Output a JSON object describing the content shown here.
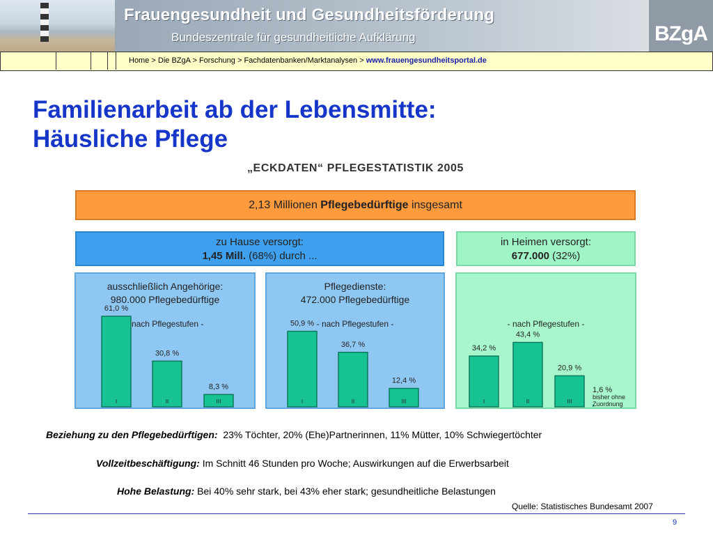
{
  "header": {
    "title": "Frauengesundheit und Gesundheitsförderung",
    "subtitle": "Bundeszentrale für gesundheitliche Aufklärung",
    "logo": "BZgA"
  },
  "breadcrumb": {
    "items": [
      "Home",
      "Die BZgA",
      "Forschung",
      "Fachdatenbanken/Marktanalysen"
    ],
    "separator": ">",
    "url": "www.frauengesundheitsportal.de"
  },
  "slide": {
    "title_line1": "Familienarbeit ab der Lebensmitte:",
    "title_line2": "Häusliche Pflege"
  },
  "chart_data": {
    "type": "bar",
    "title": "„ECKDATEN“ PFLEGESTATISTIK 2005",
    "total": {
      "prefix": "2,13 Millionen ",
      "bold": "Pflegebedürftige",
      "suffix": " insgesamt"
    },
    "home": {
      "line1": "zu Hause versorgt:",
      "line2_bold": "1,45 Mill.",
      "line2_rest": " (68%) durch ..."
    },
    "institution": {
      "line1": "in Heimen versorgt:",
      "line2_bold": "677.000",
      "line2_rest": " (32%)"
    },
    "subtitle": "- nach Pflegestufen -",
    "categories": [
      "I",
      "II",
      "III"
    ],
    "ylim": [
      0,
      100
    ],
    "panels": [
      {
        "name": "ausschließlich Angehörige",
        "heading1": "ausschließlich Angehörige:",
        "heading2": "980.000 Pflegebedürftige",
        "values": [
          61.0,
          30.8,
          8.3
        ],
        "value_labels": [
          "61,0 %",
          "30,8 %",
          "8,3 %"
        ]
      },
      {
        "name": "Pflegedienste",
        "heading1": "Pflegedienste:",
        "heading2": "472.000 Pflegebedürftige",
        "values": [
          50.9,
          36.7,
          12.4
        ],
        "value_labels": [
          "50,9 %",
          "36,7 %",
          "12,4 %"
        ]
      },
      {
        "name": "Heime",
        "heading1": "",
        "heading2": "",
        "values": [
          34.2,
          43.4,
          20.9
        ],
        "value_labels": [
          "34,2 %",
          "43,4 %",
          "20,9 %"
        ],
        "extra_value": 1.6,
        "extra_label": "1,6 %",
        "extra_note1": "bisher ohne",
        "extra_note2": "Zuordnung"
      }
    ],
    "colors": {
      "bar": "#17c392",
      "bar_border": "#0f7a5c",
      "panel_blue": "#8fc7f3",
      "panel_green": "#a8f7cc",
      "total": "#ff9a3d",
      "home": "#3ea0ef",
      "institution": "#9ff5c5"
    }
  },
  "notes": [
    {
      "label": "Beziehung zu den Pflegebedürftigen:",
      "text": "23% Töchter, 20% (Ehe)Partnerinnen, 11% Mütter, 10% Schwiegertöchter"
    },
    {
      "label": "Vollzeitbeschäftigung:",
      "text": "Im Schnitt 46 Stunden pro Woche; Auswirkungen auf die Erwerbsarbeit"
    },
    {
      "label": "Hohe Belastung:",
      "text": "Bei 40% sehr stark, bei 43% eher stark; gesundheitliche Belastungen"
    }
  ],
  "source": "Quelle: Statistisches Bundesamt 2007",
  "page_number": "9"
}
